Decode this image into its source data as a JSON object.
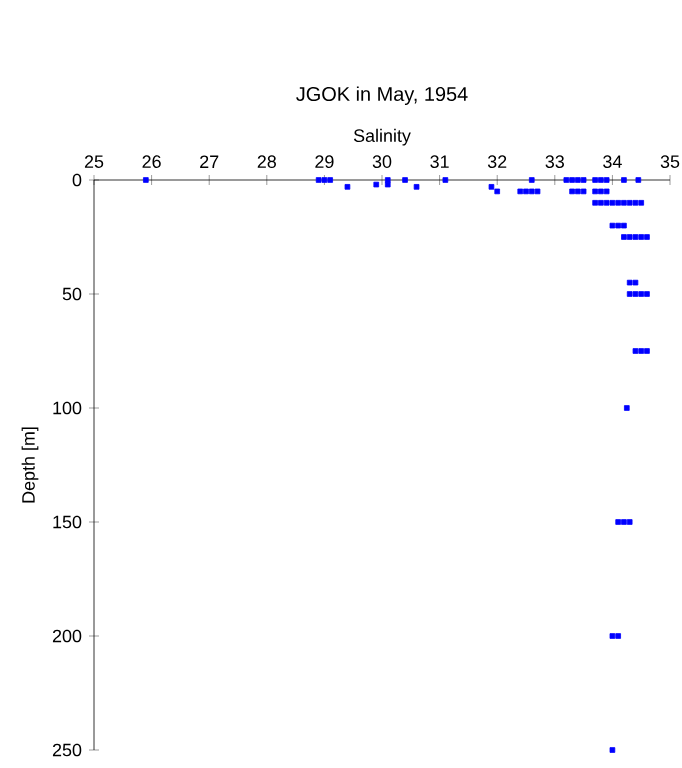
{
  "chart_data": {
    "type": "scatter",
    "title": "JGOK in May, 1954",
    "xlabel": "Salinity",
    "ylabel": "Depth [m]",
    "xlim": [
      25,
      35
    ],
    "xticks": [
      25,
      26,
      27,
      28,
      29,
      30,
      31,
      32,
      33,
      34,
      35
    ],
    "ylim": [
      250,
      0
    ],
    "yticks": [
      0,
      50,
      100,
      150,
      200,
      250
    ],
    "grid": false,
    "marker": "square",
    "series": [
      {
        "color": "#0000ff",
        "x": [
          25.9,
          28.9,
          29.0,
          29.1,
          30.1,
          30.4,
          31.1,
          32.6,
          33.2,
          33.3,
          33.4,
          33.5,
          33.7,
          33.8,
          33.9,
          34.2,
          34.45,
          29.9,
          30.1,
          29.4,
          30.6,
          31.9,
          32.0,
          32.4,
          32.5,
          32.6,
          32.7,
          33.3,
          33.4,
          33.5,
          33.7,
          33.8,
          33.9,
          33.7,
          33.8,
          33.9,
          34.0,
          34.1,
          34.2,
          34.3,
          34.4,
          34.5,
          34.0,
          34.1,
          34.2,
          34.2,
          34.3,
          34.4,
          34.5,
          34.6,
          34.3,
          34.4,
          34.3,
          34.4,
          34.5,
          34.6,
          34.4,
          34.5,
          34.6,
          34.25,
          34.1,
          34.2,
          34.3,
          34.0,
          34.1,
          34.0
        ],
        "values": [
          0,
          0,
          0,
          0,
          0,
          0,
          0,
          0,
          0,
          0,
          0,
          0,
          0,
          0,
          0,
          0,
          0,
          2,
          2,
          3,
          3,
          3,
          5,
          5,
          5,
          5,
          5,
          5,
          5,
          5,
          5,
          5,
          5,
          10,
          10,
          10,
          10,
          10,
          10,
          10,
          10,
          10,
          20,
          20,
          20,
          25,
          25,
          25,
          25,
          25,
          45,
          45,
          50,
          50,
          50,
          50,
          75,
          75,
          75,
          100,
          150,
          150,
          150,
          200,
          200,
          250
        ]
      }
    ]
  }
}
